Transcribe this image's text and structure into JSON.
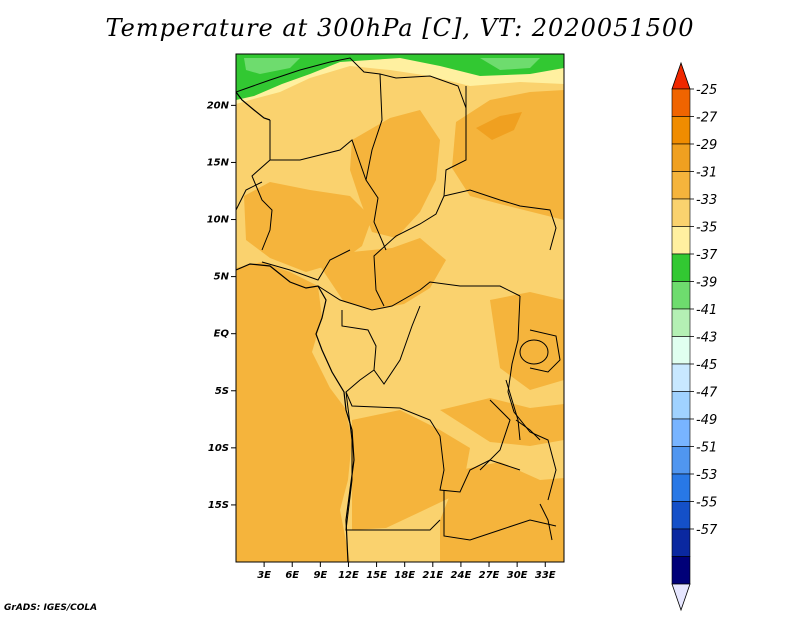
{
  "chart_data": {
    "type": "heatmap",
    "title": "Temperature at 300hPa [C], VT: 2020051500",
    "variable": "Temperature at 300hPa",
    "units": "C",
    "valid_time": "2020051500",
    "region": {
      "lon_range": [
        0,
        35
      ],
      "lat_range": [
        -20,
        24.5
      ]
    },
    "lat_ticks": [
      {
        "label": "20N",
        "lat": 20
      },
      {
        "label": "15N",
        "lat": 15
      },
      {
        "label": "10N",
        "lat": 10
      },
      {
        "label": "5N",
        "lat": 5
      },
      {
        "label": "EQ",
        "lat": 0
      },
      {
        "label": "5S",
        "lat": -5
      },
      {
        "label": "10S",
        "lat": -10
      },
      {
        "label": "15S",
        "lat": -15
      }
    ],
    "lon_ticks": [
      {
        "label": "3E",
        "lon": 3
      },
      {
        "label": "6E",
        "lon": 6
      },
      {
        "label": "9E",
        "lon": 9
      },
      {
        "label": "12E",
        "lon": 12
      },
      {
        "label": "15E",
        "lon": 15
      },
      {
        "label": "18E",
        "lon": 18
      },
      {
        "label": "21E",
        "lon": 21
      },
      {
        "label": "24E",
        "lon": 24
      },
      {
        "label": "27E",
        "lon": 27
      },
      {
        "label": "30E",
        "lon": 30
      },
      {
        "label": "33E",
        "lon": 33
      }
    ],
    "colorbar": {
      "levels": [
        "-25",
        "-27",
        "-29",
        "-31",
        "-33",
        "-35",
        "-37",
        "-39",
        "-41",
        "-43",
        "-45",
        "-47",
        "-49",
        "-51",
        "-53",
        "-55",
        "-57"
      ],
      "colors": [
        "#f06400",
        "#f08c00",
        "#f0a020",
        "#f5b43c",
        "#fad26e",
        "#fff0a0",
        "#32c832",
        "#6edc6e",
        "#b4f0b4",
        "#e0fff0",
        "#c8e8ff",
        "#a0d2ff",
        "#78b4ff",
        "#5096f0",
        "#2878e6",
        "#1450c8",
        "#0a28a0",
        "#000078",
        "#e6e6ff"
      ],
      "top_arrow_color": "#f02800",
      "bottom_arrow_color": "#e6e6ff"
    },
    "fields": [
      {
        "range": "-33 to -35",
        "area": "background over most of the domain"
      },
      {
        "range": "-31 to -33",
        "area": "Atlantic, Gulf of Guinea, Angola, Sahel, Sudan"
      },
      {
        "range": "-29 to -31",
        "area": "northeast Sudan / Egypt"
      },
      {
        "range": "-35 to -37",
        "area": "Sahara north of 20N"
      },
      {
        "range": "-37 to -39",
        "area": "northern edge near 23N"
      }
    ]
  },
  "credit": "GrADS: IGES/COLA"
}
